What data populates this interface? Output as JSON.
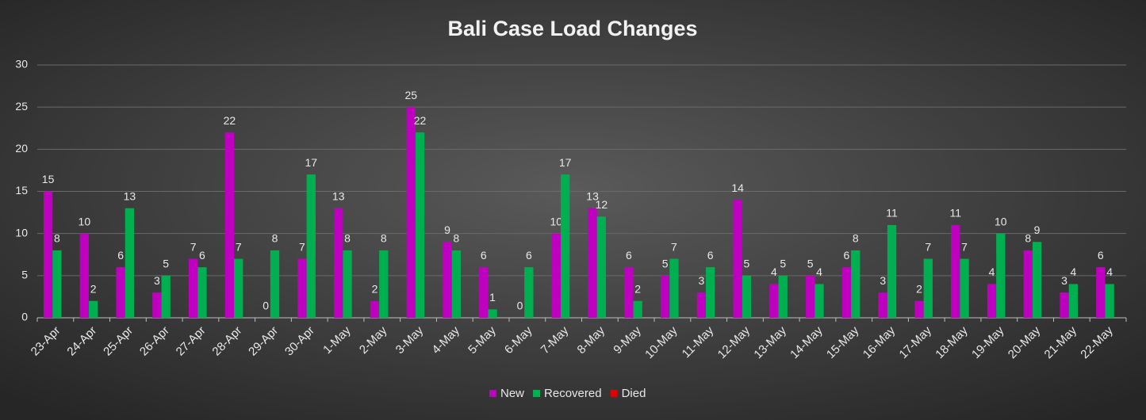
{
  "chart_data": {
    "type": "bar",
    "title": "Bali Case Load Changes",
    "categories": [
      "23-Apr",
      "24-Apr",
      "25-Apr",
      "26-Apr",
      "27-Apr",
      "28-Apr",
      "29-Apr",
      "30-Apr",
      "1-May",
      "2-May",
      "3-May",
      "4-May",
      "5-May",
      "6-May",
      "7-May",
      "8-May",
      "9-May",
      "10-May",
      "11-May",
      "12-May",
      "13-May",
      "14-May",
      "15-May",
      "16-May",
      "17-May",
      "18-May",
      "19-May",
      "20-May",
      "21-May",
      "22-May"
    ],
    "series": [
      {
        "name": "New",
        "color": "#c000c0",
        "data_labels": true,
        "values": [
          15,
          10,
          6,
          3,
          7,
          22,
          0,
          7,
          13,
          2,
          25,
          9,
          6,
          0,
          10,
          13,
          6,
          5,
          3,
          14,
          4,
          5,
          6,
          3,
          2,
          11,
          4,
          8,
          3,
          6
        ]
      },
      {
        "name": "Recovered",
        "color": "#00b050",
        "data_labels": true,
        "values": [
          8,
          2,
          13,
          5,
          6,
          7,
          8,
          17,
          8,
          8,
          22,
          8,
          1,
          6,
          17,
          12,
          2,
          7,
          6,
          5,
          5,
          4,
          8,
          11,
          7,
          7,
          10,
          9,
          4,
          4
        ]
      },
      {
        "name": "Died",
        "color": "#e00000",
        "data_labels": false,
        "values": [
          0,
          0,
          0,
          0,
          0,
          0,
          0,
          0,
          0,
          0,
          0,
          0,
          0,
          0,
          0,
          0,
          0,
          0,
          0,
          0,
          0,
          0,
          0,
          0,
          0,
          0,
          0,
          0,
          0,
          0
        ]
      }
    ],
    "ylim": [
      0,
      30
    ],
    "yticks": [
      0,
      5,
      10,
      15,
      20,
      25,
      30
    ],
    "grid": true,
    "legend": "bottom"
  }
}
